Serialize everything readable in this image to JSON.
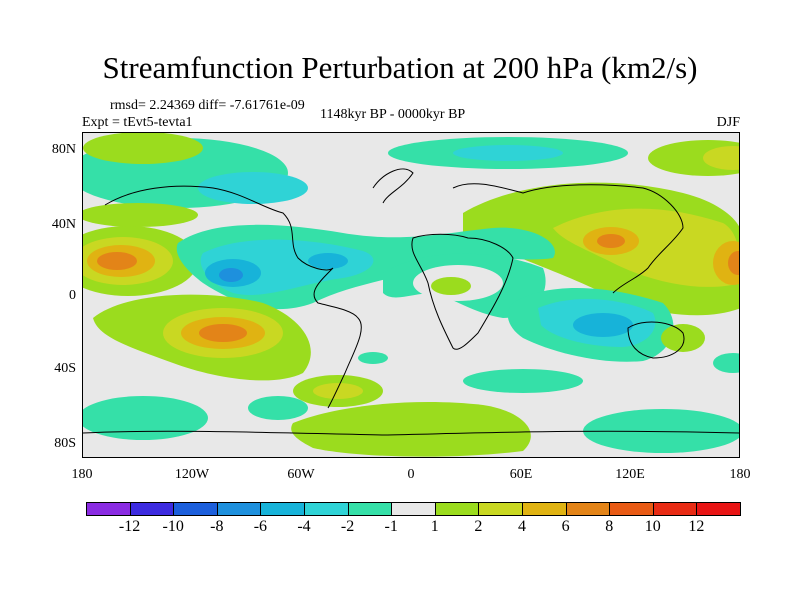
{
  "title": "Streamfunction Perturbation at 200 hPa (km2/s)",
  "stats": "rmsd= 2.24369 diff= -7.61761e-09",
  "experiment": "Expt = tEvt5-tevta1",
  "period": "1148kyr BP - 0000kyr BP",
  "season": "DJF",
  "lat_ticks": [
    "80N",
    "40N",
    "0",
    "40S",
    "80S"
  ],
  "lon_ticks": [
    "180",
    "120W",
    "60W",
    "0",
    "60E",
    "120E",
    "180"
  ],
  "colorbar": {
    "levels": [
      "-12",
      "-10",
      "-8",
      "-6",
      "-4",
      "-2",
      "-1",
      "1",
      "2",
      "4",
      "6",
      "8",
      "10",
      "12"
    ],
    "colors": [
      "#8a2be2",
      "#3d2be0",
      "#1c5fdc",
      "#1e90dd",
      "#17b3d9",
      "#2fd3d6",
      "#35e0a8",
      "#e8e8e8",
      "#9bdc1e",
      "#c9d822",
      "#e0b312",
      "#e38418",
      "#e85a14",
      "#e82b14",
      "#e81414"
    ]
  },
  "map_colors": {
    "neutral": "#e8e8e8",
    "neg1": "#35e0a8",
    "neg2": "#2fd3d6",
    "neg4": "#17b3d9",
    "neg6": "#1e90dd",
    "pos1": "#9bdc1e",
    "pos2": "#c9d822",
    "pos4": "#e0b312",
    "pos6": "#e38418",
    "pos8": "#e85a14",
    "coast": "#000000"
  }
}
